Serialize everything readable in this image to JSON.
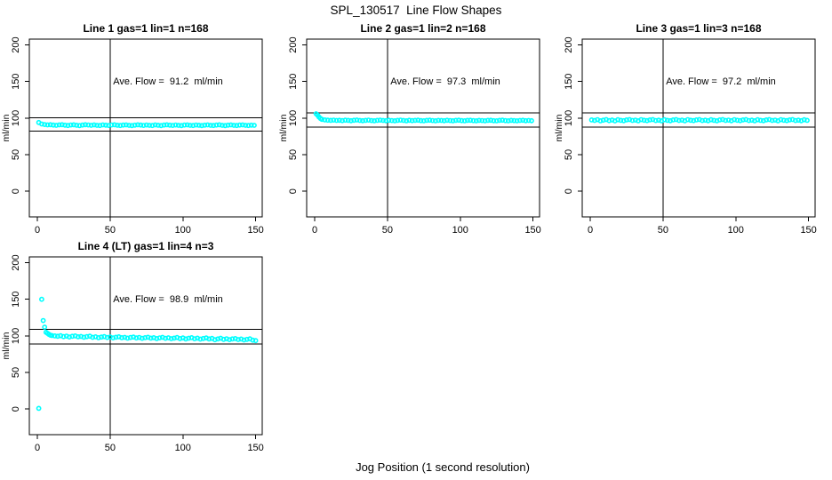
{
  "figure": {
    "title": "SPL_130517  Line Flow Shapes",
    "xlabel": "Jog Position (1 second resolution)",
    "background": "#FFFFFF",
    "point_color": "#00FFFF",
    "axis_color": "#000000"
  },
  "chart_data": [
    {
      "type": "scatter",
      "title": "Line 1 gas=1 lin=1 n=168",
      "annotation": "Ave. Flow =  91.2  ml/min",
      "ave_flow_ml_min": 91.2,
      "n": 168,
      "ylabel": "ml/min",
      "xlim": [
        -5.5,
        154.5
      ],
      "ylim": [
        -35,
        208
      ],
      "xticks": [
        0,
        50,
        100,
        150
      ],
      "yticks": [
        0,
        50,
        100,
        150,
        200
      ],
      "vline_x": 50,
      "hlines": [
        100.3,
        82.1
      ],
      "points": [
        [
          1,
          94
        ],
        [
          3,
          92
        ],
        [
          5,
          91.2
        ],
        [
          7,
          90.8
        ],
        [
          9,
          91
        ],
        [
          11,
          90.5
        ],
        [
          13,
          90.2
        ],
        [
          15,
          90.8
        ],
        [
          17,
          91
        ],
        [
          19,
          90.4
        ],
        [
          21,
          89.9
        ],
        [
          23,
          90.6
        ],
        [
          25,
          90.9
        ],
        [
          27,
          90.3
        ],
        [
          29,
          89.8
        ],
        [
          31,
          90.5
        ],
        [
          33,
          91
        ],
        [
          35,
          90.6
        ],
        [
          37,
          90.1
        ],
        [
          39,
          90.7
        ],
        [
          41,
          90.2
        ],
        [
          43,
          89.9
        ],
        [
          45,
          90.8
        ],
        [
          47,
          90.4
        ],
        [
          49,
          90
        ],
        [
          51,
          90.6
        ],
        [
          53,
          90.9
        ],
        [
          55,
          90.3
        ],
        [
          57,
          89.9
        ],
        [
          59,
          90.5
        ],
        [
          61,
          90.8
        ],
        [
          63,
          90.2
        ],
        [
          65,
          89.8
        ],
        [
          67,
          90.4
        ],
        [
          69,
          90.9
        ],
        [
          71,
          90.5
        ],
        [
          73,
          90
        ],
        [
          75,
          90.6
        ],
        [
          77,
          90.2
        ],
        [
          79,
          89.9
        ],
        [
          81,
          90.7
        ],
        [
          83,
          90.3
        ],
        [
          85,
          89.8
        ],
        [
          87,
          90.5
        ],
        [
          89,
          90.9
        ],
        [
          91,
          90.4
        ],
        [
          93,
          90
        ],
        [
          95,
          90.6
        ],
        [
          97,
          90.1
        ],
        [
          99,
          89.8
        ],
        [
          101,
          90.5
        ],
        [
          103,
          90.8
        ],
        [
          105,
          90.2
        ],
        [
          107,
          89.9
        ],
        [
          109,
          90.6
        ],
        [
          111,
          90.3
        ],
        [
          113,
          89.8
        ],
        [
          115,
          90.4
        ],
        [
          117,
          90.8
        ],
        [
          119,
          90.1
        ],
        [
          121,
          89.9
        ],
        [
          123,
          90.5
        ],
        [
          125,
          90.9
        ],
        [
          127,
          90.2
        ],
        [
          129,
          89.8
        ],
        [
          131,
          90.4
        ],
        [
          133,
          90.7
        ],
        [
          135,
          90.1
        ],
        [
          137,
          89.9
        ],
        [
          139,
          90.5
        ],
        [
          141,
          90.8
        ],
        [
          143,
          90.2
        ],
        [
          145,
          89.9
        ],
        [
          147,
          90.4
        ],
        [
          149,
          90.1
        ]
      ]
    },
    {
      "type": "scatter",
      "title": "Line 2 gas=1 lin=2 n=168",
      "annotation": "Ave. Flow =  97.3  ml/min",
      "ave_flow_ml_min": 97.3,
      "n": 168,
      "ylabel": "ml/min",
      "xlim": [
        -5.5,
        154.5
      ],
      "ylim": [
        -35,
        208
      ],
      "xticks": [
        0,
        50,
        100,
        150
      ],
      "yticks": [
        0,
        50,
        100,
        150,
        200
      ],
      "vline_x": 50,
      "hlines": [
        107.0,
        87.6
      ],
      "points": [
        [
          1,
          106
        ],
        [
          2,
          104
        ],
        [
          3,
          101.5
        ],
        [
          4,
          99.5
        ],
        [
          5,
          98.3
        ],
        [
          7,
          97.6
        ],
        [
          9,
          97.2
        ],
        [
          11,
          96.9
        ],
        [
          13,
          97.3
        ],
        [
          15,
          96.8
        ],
        [
          17,
          97.1
        ],
        [
          19,
          96.6
        ],
        [
          21,
          97.2
        ],
        [
          23,
          96.9
        ],
        [
          25,
          96.5
        ],
        [
          27,
          97.1
        ],
        [
          29,
          97.4
        ],
        [
          31,
          96.8
        ],
        [
          33,
          96.5
        ],
        [
          35,
          97
        ],
        [
          37,
          97.3
        ],
        [
          39,
          96.7
        ],
        [
          41,
          96.4
        ],
        [
          43,
          97
        ],
        [
          45,
          97.3
        ],
        [
          47,
          96.8
        ],
        [
          49,
          96.5
        ],
        [
          51,
          97.1
        ],
        [
          53,
          96.7
        ],
        [
          55,
          96.4
        ],
        [
          57,
          97
        ],
        [
          59,
          97.3
        ],
        [
          61,
          96.8
        ],
        [
          63,
          96.4
        ],
        [
          65,
          97.1
        ],
        [
          67,
          96.6
        ],
        [
          69,
          96.9
        ],
        [
          71,
          97.2
        ],
        [
          73,
          96.6
        ],
        [
          75,
          96.3
        ],
        [
          77,
          96.9
        ],
        [
          79,
          97.2
        ],
        [
          81,
          96.7
        ],
        [
          83,
          96.4
        ],
        [
          85,
          97
        ],
        [
          87,
          96.8
        ],
        [
          89,
          96.5
        ],
        [
          91,
          97.1
        ],
        [
          93,
          96.7
        ],
        [
          95,
          96.4
        ],
        [
          97,
          96.9
        ],
        [
          99,
          97.2
        ],
        [
          101,
          96.6
        ],
        [
          103,
          96.3
        ],
        [
          105,
          96.9
        ],
        [
          107,
          97.1
        ],
        [
          109,
          96.6
        ],
        [
          111,
          96.4
        ],
        [
          113,
          97
        ],
        [
          115,
          96.7
        ],
        [
          117,
          96.4
        ],
        [
          119,
          96.9
        ],
        [
          121,
          97.1
        ],
        [
          123,
          96.5
        ],
        [
          125,
          96.3
        ],
        [
          127,
          96.9
        ],
        [
          129,
          97.2
        ],
        [
          131,
          96.6
        ],
        [
          133,
          96.4
        ],
        [
          135,
          96.9
        ],
        [
          137,
          96.6
        ],
        [
          139,
          96.3
        ],
        [
          141,
          96.8
        ],
        [
          143,
          97.1
        ],
        [
          145,
          96.5
        ],
        [
          147,
          96.8
        ],
        [
          149,
          96.5
        ]
      ]
    },
    {
      "type": "scatter",
      "title": "Line 3 gas=1 lin=3 n=168",
      "annotation": "Ave. Flow =  97.2  ml/min",
      "ave_flow_ml_min": 97.2,
      "n": 168,
      "ylabel": "ml/min",
      "xlim": [
        -5.5,
        154.5
      ],
      "ylim": [
        -35,
        208
      ],
      "xticks": [
        0,
        50,
        100,
        150
      ],
      "yticks": [
        0,
        50,
        100,
        150,
        200
      ],
      "vline_x": 50,
      "hlines": [
        106.9,
        87.5
      ],
      "points": [
        [
          1,
          97.5
        ],
        [
          3,
          96.8
        ],
        [
          5,
          97.9
        ],
        [
          7,
          96.4
        ],
        [
          9,
          97.2
        ],
        [
          11,
          98
        ],
        [
          13,
          96.6
        ],
        [
          15,
          97.4
        ],
        [
          17,
          96.2
        ],
        [
          19,
          97.8
        ],
        [
          21,
          97
        ],
        [
          23,
          96.5
        ],
        [
          25,
          97.6
        ],
        [
          27,
          98.1
        ],
        [
          29,
          96.8
        ],
        [
          31,
          97.3
        ],
        [
          33,
          96.4
        ],
        [
          35,
          97.9
        ],
        [
          37,
          97.1
        ],
        [
          39,
          96.6
        ],
        [
          41,
          97.5
        ],
        [
          43,
          98
        ],
        [
          45,
          96.7
        ],
        [
          47,
          97.2
        ],
        [
          49,
          96.4
        ],
        [
          51,
          97.8
        ],
        [
          53,
          97
        ],
        [
          55,
          96.5
        ],
        [
          57,
          97.6
        ],
        [
          59,
          98.1
        ],
        [
          61,
          96.8
        ],
        [
          63,
          97.3
        ],
        [
          65,
          96.4
        ],
        [
          67,
          97.9
        ],
        [
          69,
          97.1
        ],
        [
          71,
          96.6
        ],
        [
          73,
          97.5
        ],
        [
          75,
          98
        ],
        [
          77,
          96.7
        ],
        [
          79,
          97.2
        ],
        [
          81,
          96.5
        ],
        [
          83,
          97.8
        ],
        [
          85,
          97
        ],
        [
          87,
          96.4
        ],
        [
          89,
          97.6
        ],
        [
          91,
          98.1
        ],
        [
          93,
          96.8
        ],
        [
          95,
          97.3
        ],
        [
          97,
          96.5
        ],
        [
          99,
          97.9
        ],
        [
          101,
          97.1
        ],
        [
          103,
          96.6
        ],
        [
          105,
          97.5
        ],
        [
          107,
          98
        ],
        [
          109,
          96.7
        ],
        [
          111,
          97.2
        ],
        [
          113,
          96.4
        ],
        [
          115,
          97.8
        ],
        [
          117,
          97
        ],
        [
          119,
          96.5
        ],
        [
          121,
          97.6
        ],
        [
          123,
          98.1
        ],
        [
          125,
          96.8
        ],
        [
          127,
          97.3
        ],
        [
          129,
          96.4
        ],
        [
          131,
          97.9
        ],
        [
          133,
          97.1
        ],
        [
          135,
          96.6
        ],
        [
          137,
          97.5
        ],
        [
          139,
          98
        ],
        [
          141,
          96.7
        ],
        [
          143,
          97.2
        ],
        [
          145,
          96.5
        ],
        [
          147,
          97.8
        ],
        [
          149,
          97
        ]
      ]
    },
    {
      "type": "scatter",
      "title": "Line 4 (LT) gas=1 lin=4 n=3",
      "annotation": "Ave. Flow =  98.9  ml/min",
      "ave_flow_ml_min": 98.9,
      "n": 3,
      "ylabel": "ml/min",
      "xlim": [
        -5.5,
        154.5
      ],
      "ylim": [
        -35,
        208
      ],
      "xticks": [
        0,
        50,
        100,
        150
      ],
      "yticks": [
        0,
        50,
        100,
        150,
        200
      ],
      "vline_x": 50,
      "hlines": [
        108.8,
        89.0
      ],
      "points": [
        [
          1,
          1
        ],
        [
          3,
          150
        ],
        [
          4,
          121
        ],
        [
          5,
          112
        ],
        [
          6,
          105
        ],
        [
          7,
          103.5
        ],
        [
          8,
          102
        ],
        [
          9,
          101
        ],
        [
          10,
          100.5
        ],
        [
          12,
          100
        ],
        [
          14,
          99.5
        ],
        [
          16,
          100.2
        ],
        [
          18,
          99
        ],
        [
          20,
          99.8
        ],
        [
          22,
          98.5
        ],
        [
          24,
          99.5
        ],
        [
          26,
          100
        ],
        [
          28,
          98.8
        ],
        [
          30,
          99.3
        ],
        [
          32,
          98.2
        ],
        [
          34,
          99
        ],
        [
          36,
          99.6
        ],
        [
          38,
          98
        ],
        [
          40,
          98.8
        ],
        [
          42,
          97.6
        ],
        [
          44,
          98.4
        ],
        [
          46,
          99
        ],
        [
          48,
          97.8
        ],
        [
          50,
          98.5
        ],
        [
          52,
          97.3
        ],
        [
          54,
          98.2
        ],
        [
          56,
          98.8
        ],
        [
          58,
          97.5
        ],
        [
          60,
          98
        ],
        [
          62,
          96.9
        ],
        [
          64,
          97.8
        ],
        [
          66,
          98.4
        ],
        [
          68,
          97.2
        ],
        [
          70,
          97.9
        ],
        [
          72,
          96.7
        ],
        [
          74,
          97.5
        ],
        [
          76,
          98.2
        ],
        [
          78,
          96.9
        ],
        [
          80,
          97.6
        ],
        [
          82,
          96.4
        ],
        [
          84,
          97.3
        ],
        [
          86,
          98
        ],
        [
          88,
          96.7
        ],
        [
          90,
          97.4
        ],
        [
          92,
          96.2
        ],
        [
          94,
          97
        ],
        [
          96,
          97.8
        ],
        [
          98,
          96.4
        ],
        [
          100,
          97.2
        ],
        [
          102,
          95.9
        ],
        [
          104,
          96.8
        ],
        [
          106,
          97.5
        ],
        [
          108,
          96.1
        ],
        [
          110,
          96.9
        ],
        [
          112,
          95.6
        ],
        [
          114,
          96.5
        ],
        [
          116,
          97.2
        ],
        [
          118,
          95.8
        ],
        [
          120,
          96.6
        ],
        [
          122,
          94.8
        ],
        [
          124,
          95.9
        ],
        [
          126,
          96.8
        ],
        [
          128,
          95.3
        ],
        [
          130,
          96.1
        ],
        [
          132,
          94.9
        ],
        [
          134,
          95.8
        ],
        [
          136,
          96.4
        ],
        [
          138,
          95
        ],
        [
          140,
          95.7
        ],
        [
          142,
          94.4
        ],
        [
          144,
          95.3
        ],
        [
          146,
          96
        ],
        [
          148,
          94.2
        ],
        [
          150,
          93.5
        ]
      ]
    }
  ]
}
